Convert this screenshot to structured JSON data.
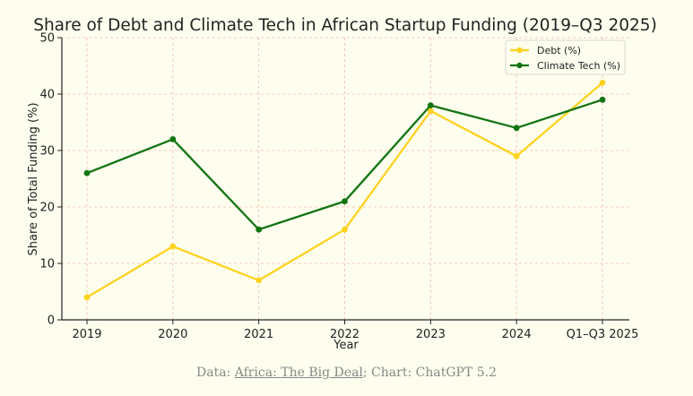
{
  "chart_data": {
    "type": "line",
    "title": "Share of Debt and Climate Tech in African Startup Funding (2019–Q3 2025)",
    "xlabel": "Year",
    "ylabel": "Share of Total Funding (%)",
    "categories": [
      "2019",
      "2020",
      "2021",
      "2022",
      "2023",
      "2024",
      "Q1–Q3 2025"
    ],
    "ylim": [
      0,
      50
    ],
    "yticks": [
      0,
      10,
      20,
      30,
      40,
      50
    ],
    "grid": true,
    "legend_position": "top-right",
    "series": [
      {
        "name": "Debt (%)",
        "color": "#ffd21f",
        "values": [
          4,
          13,
          7,
          16,
          37,
          29,
          42
        ]
      },
      {
        "name": "Climate Tech (%)",
        "color": "#127512",
        "values": [
          26,
          32,
          16,
          21,
          38,
          34,
          39
        ]
      }
    ]
  },
  "source": {
    "prefix": "Data: ",
    "link_text": "Africa: The Big Deal",
    "suffix": "; Chart: ChatGPT 5.2"
  }
}
